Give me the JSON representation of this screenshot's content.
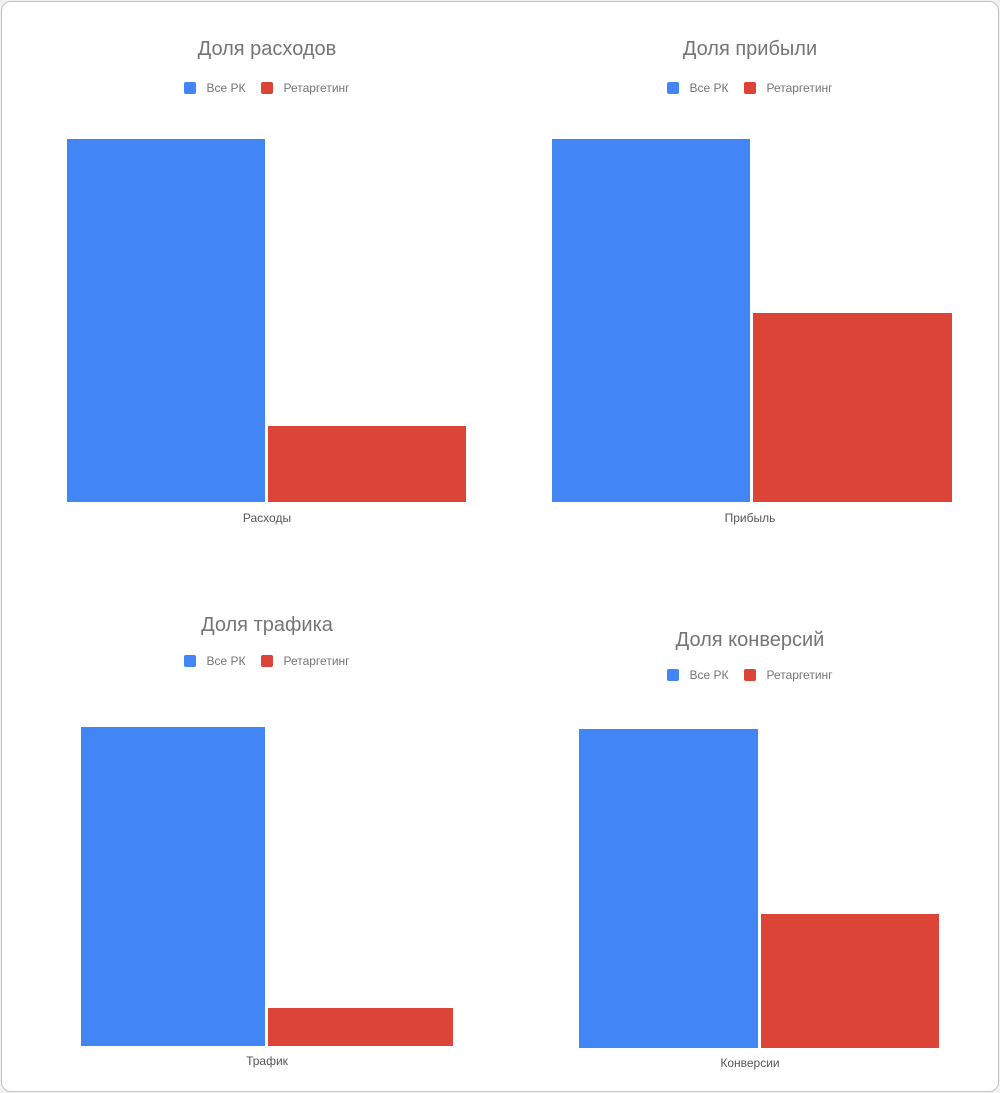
{
  "colors": {
    "series_all": "#4285f4",
    "series_retargeting": "#db4437"
  },
  "chart_data": [
    {
      "type": "bar",
      "title": "Доля расходов",
      "categories": [
        "Расходы"
      ],
      "series": [
        {
          "name": "Все РК",
          "values": [
            100
          ]
        },
        {
          "name": "Ретаргетинг",
          "values": [
            21
          ]
        }
      ],
      "ylim": [
        0,
        100
      ],
      "legend": "top",
      "grid": false
    },
    {
      "type": "bar",
      "title": "Доля прибыли",
      "categories": [
        "Прибыль"
      ],
      "series": [
        {
          "name": "Все РК",
          "values": [
            100
          ]
        },
        {
          "name": "Ретаргетинг",
          "values": [
            52
          ]
        }
      ],
      "ylim": [
        0,
        100
      ],
      "legend": "top",
      "grid": false
    },
    {
      "type": "bar",
      "title": "Доля трафика",
      "categories": [
        "Трафик"
      ],
      "series": [
        {
          "name": "Все РК",
          "values": [
            100
          ]
        },
        {
          "name": "Ретаргетинг",
          "values": [
            12
          ]
        }
      ],
      "ylim": [
        0,
        100
      ],
      "legend": "top",
      "grid": false
    },
    {
      "type": "bar",
      "title": "Доля конверсий",
      "categories": [
        "Конверсии"
      ],
      "series": [
        {
          "name": "Все РК",
          "values": [
            100
          ]
        },
        {
          "name": "Ретаргетинг",
          "values": [
            42
          ]
        }
      ],
      "ylim": [
        0,
        100
      ],
      "legend": "top",
      "grid": false
    }
  ]
}
